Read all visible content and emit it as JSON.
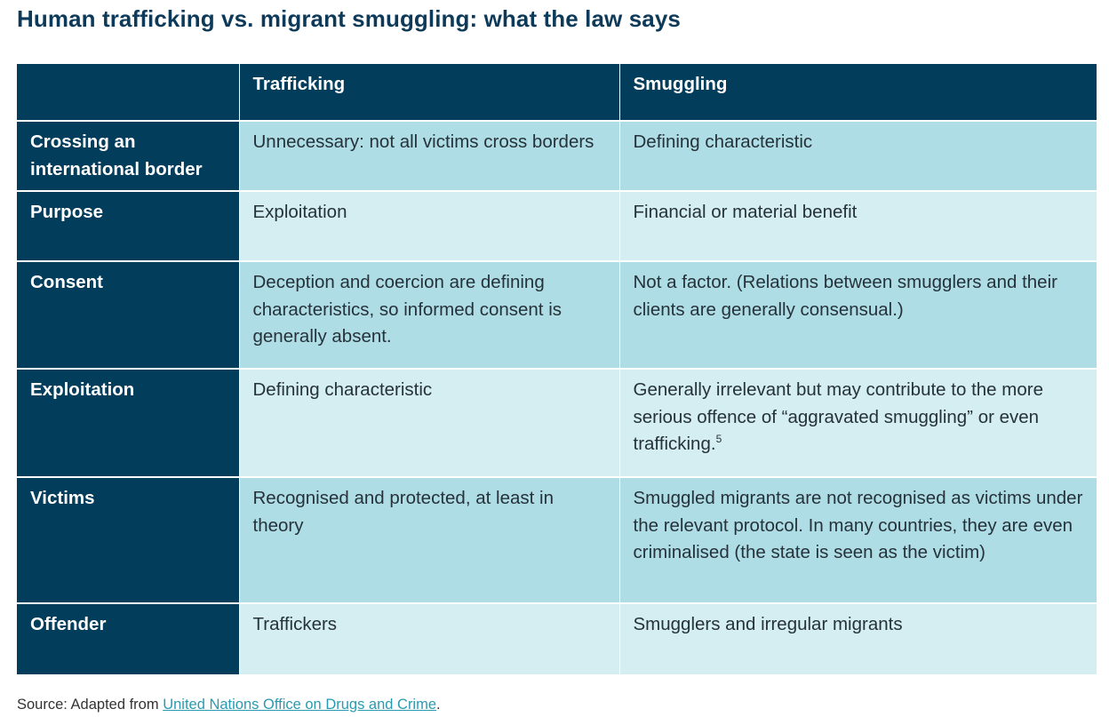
{
  "title": "Human trafficking vs. migrant smuggling: what the law says",
  "table": {
    "headers": [
      "",
      "Trafficking",
      "Smuggling"
    ],
    "rows": [
      {
        "label": "Crossing an international border",
        "trafficking": "Unnecessary: not all victims cross borders",
        "smuggling": "Defining characteristic"
      },
      {
        "label": "Purpose",
        "trafficking": "Exploitation",
        "smuggling": "Financial or material benefit"
      },
      {
        "label": "Consent",
        "trafficking": "Deception and coercion are defining characteristics, so informed consent is generally absent.",
        "smuggling": "Not a factor. (Relations between smugglers and their clients are generally consensual.)"
      },
      {
        "label": "Exploitation",
        "trafficking": "Defining characteristic",
        "smuggling": "Generally irrelevant but may contribute to the more serious offence of “aggravated smuggling” or even trafficking.",
        "smuggling_footnote": "5"
      },
      {
        "label": "Victims",
        "trafficking": "Recognised and protected, at least in theory",
        "smuggling": "Smuggled migrants are not recognised as victims under the relevant protocol. In many countries, they are even criminalised (the state is seen as the victim)"
      },
      {
        "label": "Offender",
        "trafficking": "Traffickers",
        "smuggling": "Smugglers and irregular migrants"
      }
    ]
  },
  "source": {
    "prefix": "Source: Adapted from ",
    "link_text": "United Nations Office on Drugs and Crime",
    "suffix": "."
  },
  "colors": {
    "header_bg": "#033d5c",
    "title_color": "#0e3a5a",
    "row_light_a": "#afdde5",
    "row_light_b": "#d5eef1",
    "link_color": "#2a9ab0"
  }
}
